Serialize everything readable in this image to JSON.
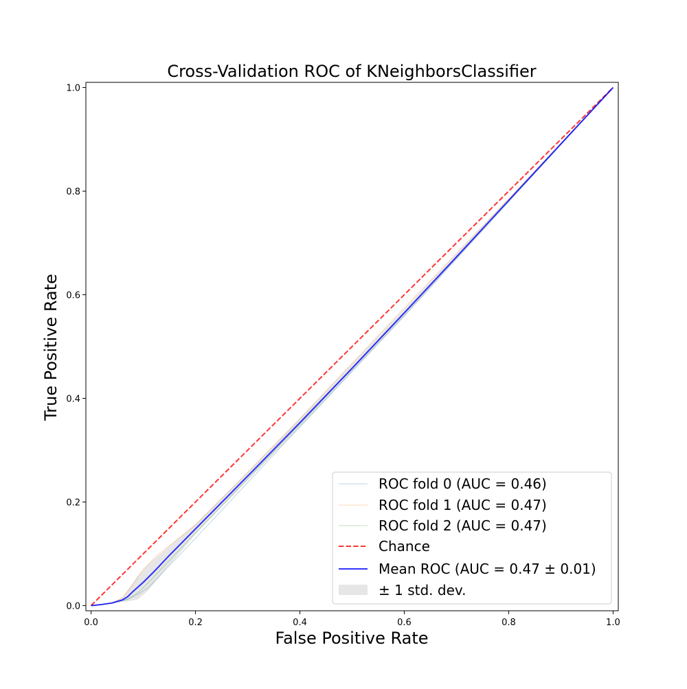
{
  "chart_data": {
    "type": "line",
    "title": "Cross-Validation ROC of KNeighborsClassifier",
    "xlabel": "False Positive Rate",
    "ylabel": "True Positive Rate",
    "xlim": [
      -0.01,
      1.01
    ],
    "ylim": [
      -0.01,
      1.01
    ],
    "xticks": [
      {
        "value": 0.0,
        "label": "0.0"
      },
      {
        "value": 0.2,
        "label": "0.2"
      },
      {
        "value": 0.4,
        "label": "0.4"
      },
      {
        "value": 0.6,
        "label": "0.6"
      },
      {
        "value": 0.8,
        "label": "0.8"
      },
      {
        "value": 1.0,
        "label": "1.0"
      }
    ],
    "yticks": [
      {
        "value": 0.0,
        "label": "0.0"
      },
      {
        "value": 0.2,
        "label": "0.2"
      },
      {
        "value": 0.4,
        "label": "0.4"
      },
      {
        "value": 0.6,
        "label": "0.6"
      },
      {
        "value": 0.8,
        "label": "0.8"
      },
      {
        "value": 1.0,
        "label": "1.0"
      }
    ],
    "grid": false,
    "legend_position": "lower right",
    "series": [
      {
        "name": "ROC fold 0 (AUC = 0.46)",
        "color": "#1f77b4",
        "opacity": 0.3,
        "width": 1,
        "x": [
          0,
          0.04,
          0.07,
          0.09,
          0.11,
          0.2,
          0.4,
          0.6,
          0.8,
          1.0
        ],
        "y": [
          0,
          0.005,
          0.012,
          0.022,
          0.035,
          0.13,
          0.345,
          0.56,
          0.78,
          1.0
        ]
      },
      {
        "name": "ROC fold 1 (AUC = 0.47)",
        "color": "#ff7f0e",
        "opacity": 0.3,
        "width": 1,
        "x": [
          0,
          0.04,
          0.06,
          0.08,
          0.1,
          0.13,
          0.2,
          0.4,
          0.6,
          0.8,
          1.0
        ],
        "y": [
          0,
          0.005,
          0.015,
          0.04,
          0.07,
          0.1,
          0.155,
          0.36,
          0.575,
          0.785,
          1.0
        ]
      },
      {
        "name": "ROC fold 2 (AUC = 0.47)",
        "color": "#2ca02c",
        "opacity": 0.3,
        "width": 1,
        "x": [
          0,
          0.04,
          0.07,
          0.09,
          0.11,
          0.2,
          0.4,
          0.6,
          0.8,
          1.0
        ],
        "y": [
          0,
          0.005,
          0.012,
          0.025,
          0.045,
          0.14,
          0.35,
          0.565,
          0.782,
          1.0
        ]
      },
      {
        "name": "Chance",
        "color": "#ff0000",
        "opacity": 0.8,
        "width": 2,
        "dash": true,
        "x": [
          0,
          1
        ],
        "y": [
          0,
          1
        ]
      },
      {
        "name": "Mean ROC (AUC = 0.47 ± 0.01)",
        "color": "#0000ff",
        "opacity": 0.8,
        "width": 2,
        "x": [
          0,
          0.02,
          0.04,
          0.05,
          0.06,
          0.07,
          0.08,
          0.1,
          0.12,
          0.15,
          0.2,
          0.3,
          0.4,
          0.5,
          0.6,
          0.7,
          0.8,
          0.9,
          1.0
        ],
        "y": [
          0,
          0.002,
          0.005,
          0.008,
          0.011,
          0.017,
          0.027,
          0.045,
          0.065,
          0.097,
          0.148,
          0.25,
          0.353,
          0.458,
          0.565,
          0.673,
          0.782,
          0.891,
          1.0
        ]
      }
    ],
    "band": {
      "name": "± 1 std. dev.",
      "color": "#808080",
      "opacity": 0.2,
      "x": [
        0,
        0.04,
        0.06,
        0.07,
        0.09,
        0.11,
        0.15,
        0.2,
        0.3,
        0.4,
        0.6,
        0.8,
        1.0
      ],
      "upper": [
        0,
        0.006,
        0.015,
        0.03,
        0.058,
        0.08,
        0.115,
        0.158,
        0.258,
        0.362,
        0.573,
        0.786,
        1.0
      ],
      "lower": [
        0,
        0.004,
        0.007,
        0.008,
        0.012,
        0.03,
        0.078,
        0.138,
        0.242,
        0.344,
        0.557,
        0.778,
        1.0
      ]
    }
  }
}
